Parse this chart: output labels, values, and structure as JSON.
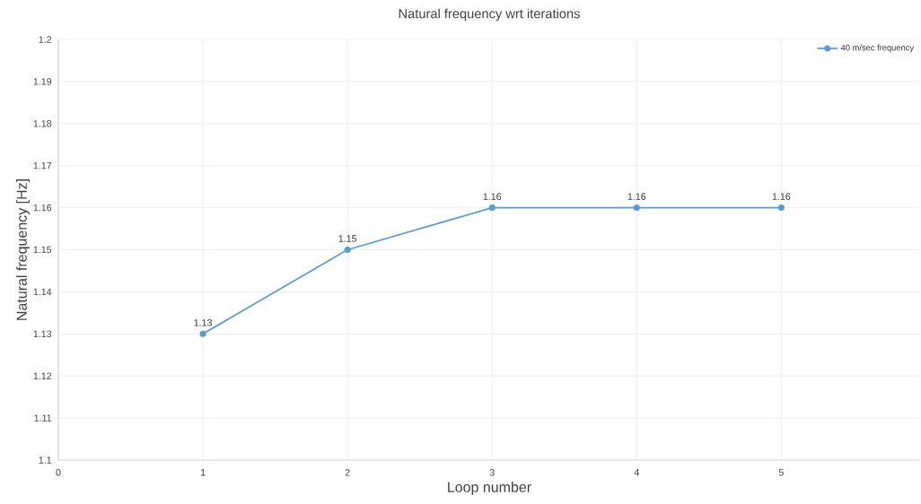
{
  "chart_data": {
    "type": "line",
    "title": "Natural frequency wrt iterations",
    "xlabel": "Loop number",
    "ylabel": "Natural frequency [Hz]",
    "x": [
      1,
      2,
      3,
      4,
      5
    ],
    "series": [
      {
        "name": "40 m/sec frequency",
        "color": "#5b9bd5",
        "values": [
          1.13,
          1.15,
          1.16,
          1.16,
          1.16
        ]
      }
    ],
    "xlim": [
      0,
      5.96
    ],
    "xticks": [
      0,
      1,
      2,
      3,
      4,
      5
    ],
    "ylim": [
      1.1,
      1.2
    ],
    "yticks": [
      1.1,
      1.11,
      1.12,
      1.13,
      1.14,
      1.15,
      1.16,
      1.17,
      1.18,
      1.19,
      1.2
    ],
    "grid": true,
    "legend": "top right",
    "marker": "circle",
    "line_style": "solid",
    "data_labels": true
  }
}
